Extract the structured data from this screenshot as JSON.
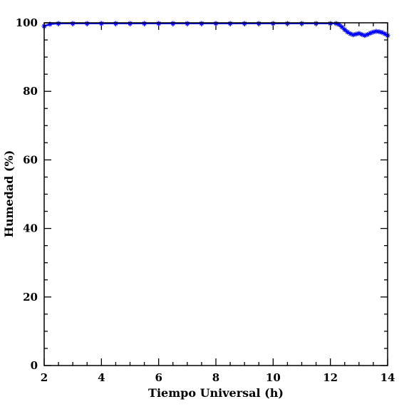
{
  "chart_data": {
    "type": "line",
    "xlabel": "Tiempo Universal (h)",
    "ylabel": "Humedad (%)",
    "xlim": [
      2,
      14
    ],
    "ylim": [
      0,
      100
    ],
    "xticks": [
      2,
      4,
      6,
      8,
      10,
      12,
      14
    ],
    "yticks": [
      0,
      20,
      40,
      60,
      80,
      100
    ],
    "xtick_labels": [
      "2",
      "4",
      "6",
      "8",
      "10",
      "12",
      "14"
    ],
    "ytick_labels": [
      "0",
      "20",
      "40",
      "60",
      "80",
      "100"
    ],
    "x_minor_step": 0.5,
    "y_minor_step": 5,
    "grid": false,
    "marker": "star",
    "series": [
      {
        "color": "#0000ff",
        "x": [
          2.0,
          2.2,
          2.5,
          3.0,
          3.5,
          4.0,
          4.5,
          5.0,
          5.5,
          6.0,
          6.5,
          7.0,
          7.5,
          8.0,
          8.5,
          9.0,
          9.5,
          10.0,
          10.5,
          11.0,
          11.5,
          12.0,
          12.2,
          12.3,
          12.4,
          12.5,
          12.6,
          12.7,
          12.8,
          12.9,
          13.0,
          13.1,
          13.2,
          13.3,
          13.4,
          13.5,
          13.6,
          13.7,
          13.8,
          13.9,
          14.0
        ],
        "y": [
          99.0,
          99.6,
          99.8,
          99.8,
          99.8,
          99.8,
          99.8,
          99.8,
          99.8,
          99.8,
          99.8,
          99.8,
          99.8,
          99.8,
          99.8,
          99.8,
          99.8,
          99.8,
          99.8,
          99.8,
          99.8,
          99.8,
          99.8,
          99.5,
          98.8,
          98.0,
          97.3,
          96.8,
          96.5,
          96.7,
          96.9,
          96.6,
          96.3,
          96.6,
          97.0,
          97.3,
          97.5,
          97.4,
          97.2,
          96.8,
          96.3
        ]
      }
    ]
  }
}
